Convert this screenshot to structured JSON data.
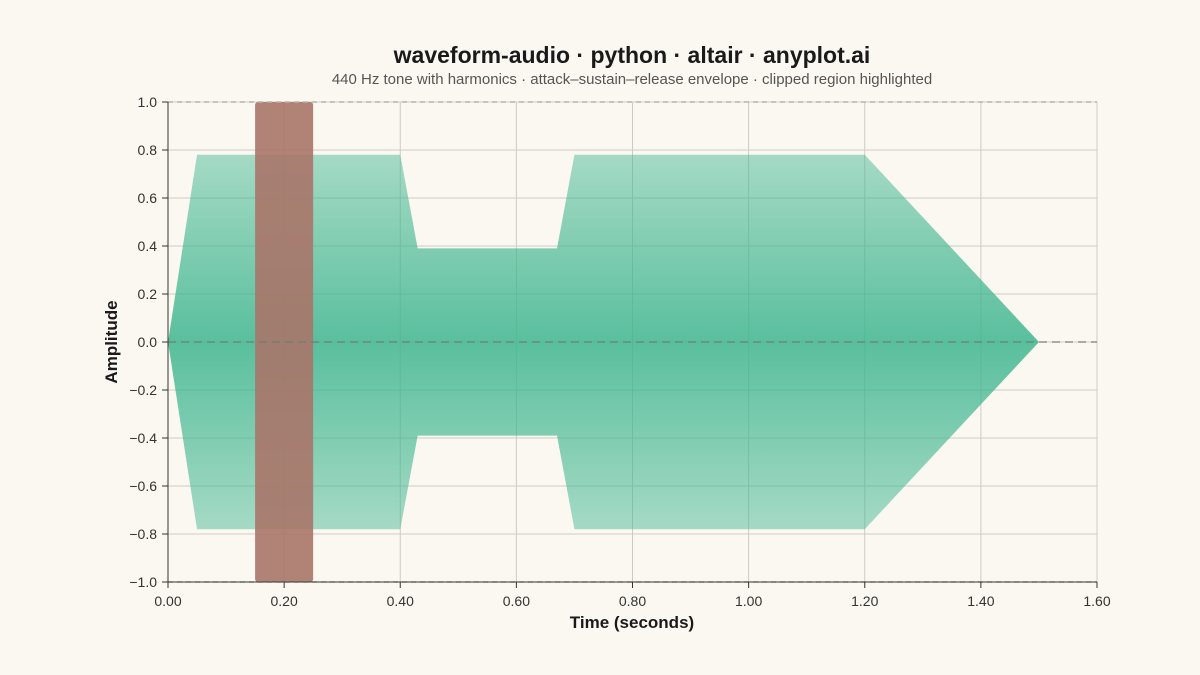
{
  "chart_data": {
    "type": "area",
    "title": "waveform-audio · python · altair · anyplot.ai",
    "subtitle": "440 Hz tone with harmonics · attack–sustain–release envelope · clipped region highlighted",
    "xlabel": "Time (seconds)",
    "ylabel": "Amplitude",
    "xlim": [
      0,
      1.6
    ],
    "ylim": [
      -1.0,
      1.0
    ],
    "x_ticks": [
      "0.00",
      "0.20",
      "0.40",
      "0.60",
      "0.80",
      "1.00",
      "1.20",
      "1.40",
      "1.60"
    ],
    "y_ticks": [
      "1.0",
      "0.8",
      "0.6",
      "0.4",
      "0.2",
      "0.0",
      "−0.2",
      "−0.4",
      "−0.6",
      "−0.8",
      "−1.0"
    ],
    "grid": true,
    "zero_line": 0.0,
    "clip_threshold": [
      1.0,
      -1.0
    ],
    "series": [
      {
        "envelope": {
          "x": [
            0.0,
            0.05,
            0.4,
            0.43,
            0.67,
            0.7,
            1.2,
            1.5
          ],
          "upper": [
            0.0,
            0.78,
            0.78,
            0.39,
            0.39,
            0.78,
            0.78,
            0.0
          ],
          "lower": [
            0.0,
            -0.78,
            -0.78,
            -0.39,
            -0.39,
            -0.78,
            -0.78,
            0.0
          ]
        },
        "color": "#3DB58F"
      }
    ],
    "clipped_region": {
      "x_start": 0.15,
      "x_end": 0.25,
      "y_range": [
        -1.0,
        1.0
      ],
      "color": "#A87569"
    }
  }
}
